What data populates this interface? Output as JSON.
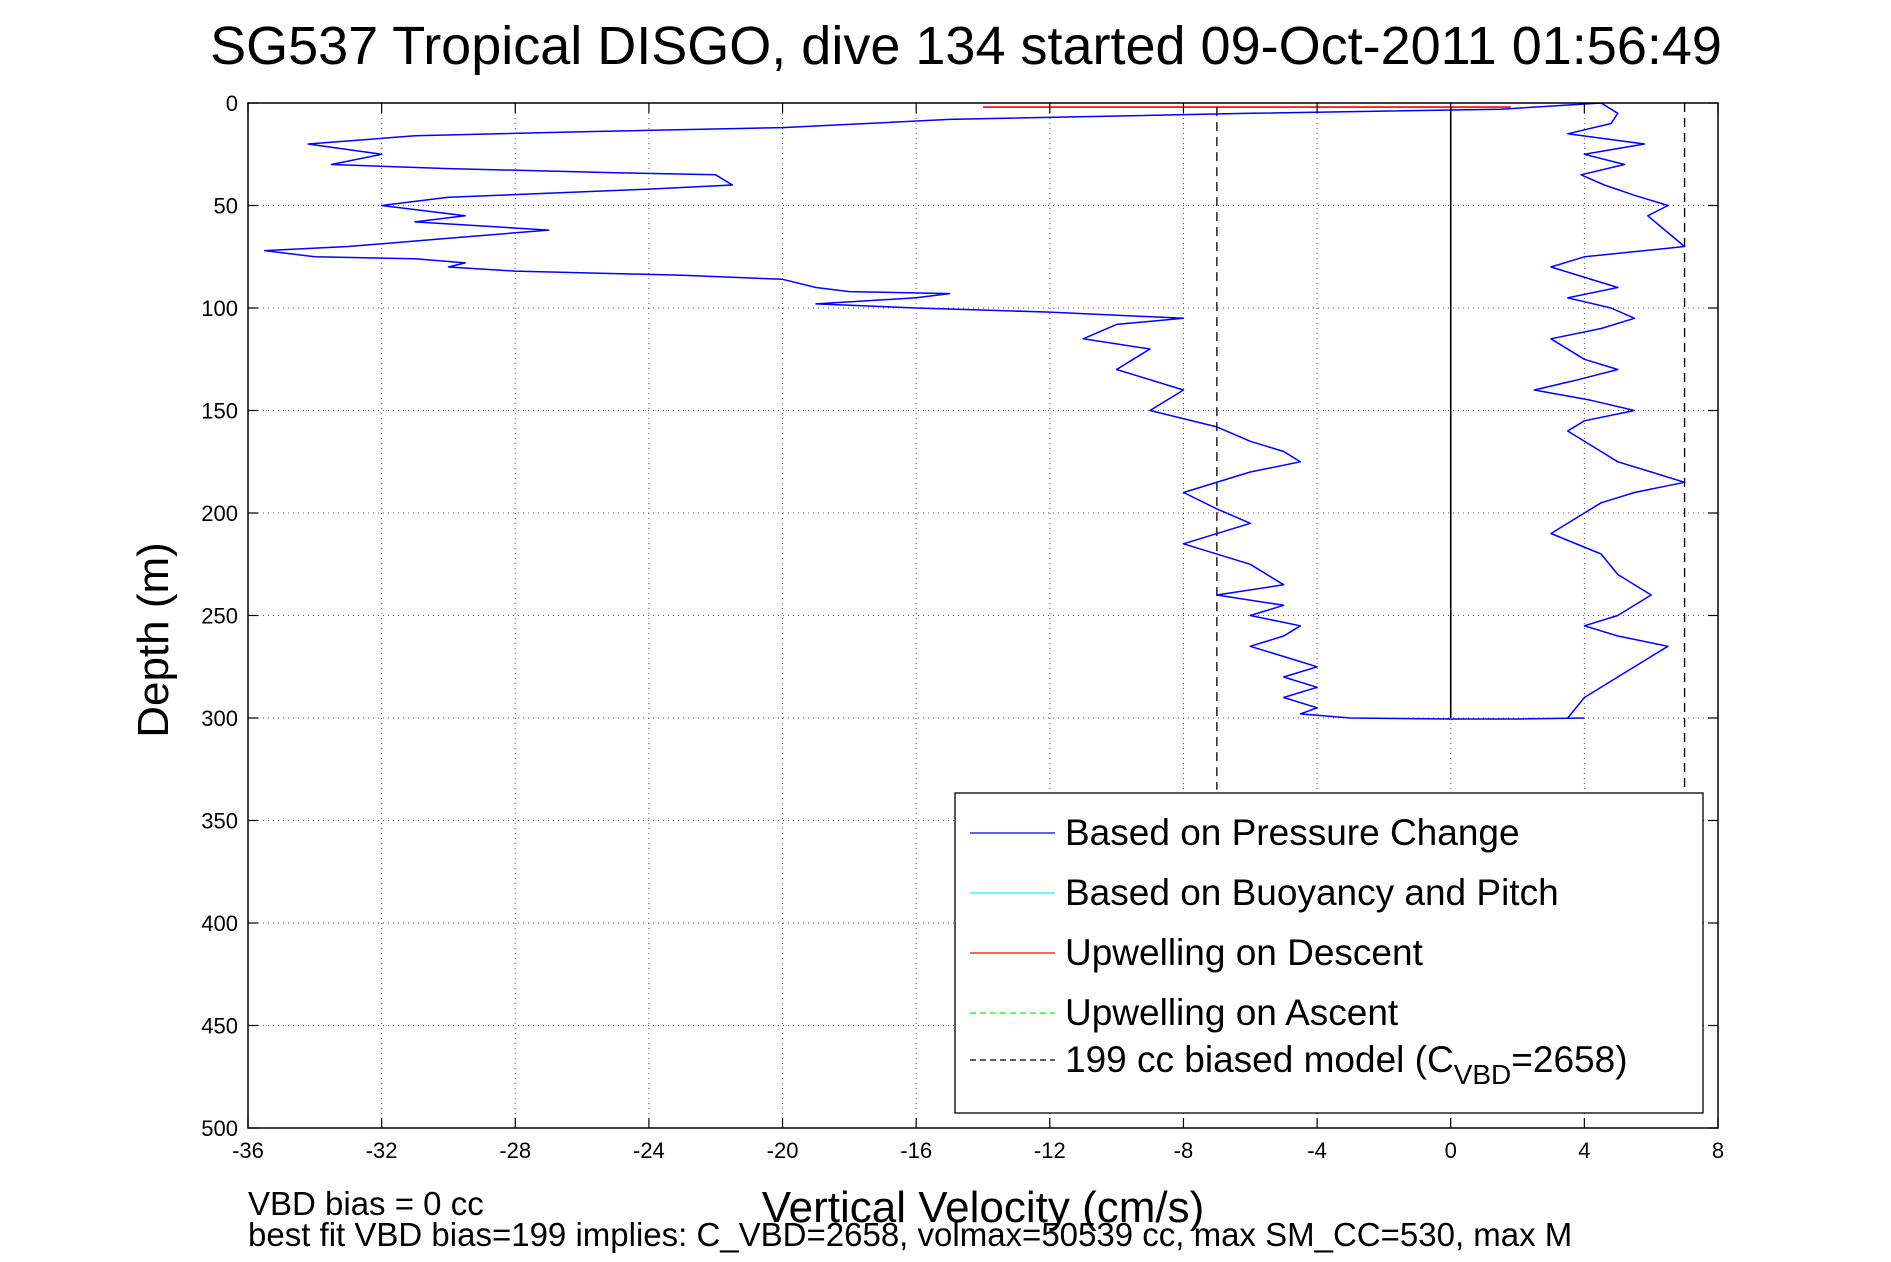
{
  "chart_data": {
    "type": "line",
    "title": "SG537 Tropical DISGO, dive 134 started 09-Oct-2011 01:56:49",
    "xlabel": "Vertical Velocity (cm/s)",
    "ylabel": "Depth (m)",
    "xlim": [
      -36,
      8
    ],
    "ylim": [
      0,
      500
    ],
    "y_reversed": true,
    "grid": true,
    "x_ticks": [
      -36,
      -32,
      -28,
      -24,
      -20,
      -16,
      -12,
      -8,
      -4,
      0,
      4,
      8
    ],
    "y_ticks": [
      0,
      50,
      100,
      150,
      200,
      250,
      300,
      350,
      400,
      450,
      500
    ],
    "legend_position": "bottom-right",
    "legend": [
      {
        "label": "Based on Pressure Change",
        "color": "#0000ff",
        "style": "solid"
      },
      {
        "label": "Based on Buoyancy and Pitch",
        "color": "#00ffff",
        "style": "solid"
      },
      {
        "label": "Upwelling on Descent",
        "color": "#ff0000",
        "style": "solid"
      },
      {
        "label": "Upwelling on Ascent",
        "color": "#00ff00",
        "style": "dashed"
      },
      {
        "label_pre": "199 cc biased model (C",
        "label_sub": "VBD",
        "label_post": "=2658)",
        "color": "#000000",
        "style": "dashed"
      }
    ],
    "series": [
      {
        "name": "Based on Pressure Change",
        "color": "#0000ff",
        "x": [
          4.5,
          1.5,
          -6,
          -15,
          -20,
          -26,
          -31,
          -34.2,
          -32,
          -33.5,
          -30,
          -25,
          -22,
          -21.5,
          -24,
          -30,
          -32,
          -29.5,
          -31,
          -27,
          -30,
          -33,
          -35.5,
          -34,
          -31,
          -29.5,
          -30,
          -28,
          -23,
          -20,
          -19,
          -18,
          -15,
          -16,
          -19,
          -16,
          -12,
          -8,
          -10,
          -11,
          -9,
          -10,
          -8,
          -9,
          -7,
          -6,
          -5,
          -4.5,
          -6,
          -8,
          -7,
          -6,
          -8,
          -6,
          -5,
          -7,
          -5,
          -6,
          -4.5,
          -5,
          -6,
          -5,
          -4,
          -5,
          -4,
          -5,
          -4,
          -4.5,
          -3,
          0,
          2,
          4
        ],
        "y": [
          0,
          3,
          5,
          8,
          12,
          14,
          16,
          20,
          25,
          30,
          32,
          34,
          35,
          40,
          42,
          46,
          50,
          55,
          58,
          62,
          66,
          70,
          72,
          75,
          76,
          78,
          80,
          82,
          84,
          86,
          90,
          92,
          93,
          95,
          98,
          100,
          102,
          105,
          108,
          115,
          120,
          130,
          140,
          150,
          158,
          165,
          170,
          175,
          180,
          190,
          198,
          205,
          215,
          225,
          235,
          240,
          245,
          250,
          255,
          260,
          265,
          270,
          275,
          280,
          285,
          290,
          295,
          298,
          300,
          300.5,
          300.5,
          300
        ]
      },
      {
        "name": "",
        "color": "#0000ff",
        "x": [
          4.5,
          5,
          4.8,
          3.5,
          5.8,
          4,
          5.2,
          3.9,
          4.6,
          5.5,
          6.5,
          5.9,
          7,
          4,
          3,
          5,
          3.5,
          4.8,
          5.5,
          4.5,
          3,
          4,
          5,
          3.8,
          2.5,
          4.2,
          5.5,
          4,
          3.5,
          4.5,
          5,
          6,
          7,
          5.5,
          4.5,
          4,
          3,
          4.5,
          5,
          6,
          5,
          4,
          5,
          6.5,
          6,
          5,
          4,
          3.5
        ],
        "y": [
          0,
          5,
          10,
          15,
          20,
          25,
          30,
          35,
          40,
          45,
          50,
          55,
          70,
          75,
          80,
          90,
          95,
          100,
          105,
          110,
          115,
          125,
          130,
          135,
          140,
          145,
          150,
          155,
          160,
          170,
          175,
          180,
          185,
          190,
          195,
          200,
          210,
          220,
          230,
          240,
          250,
          255,
          260,
          265,
          270,
          280,
          290,
          300
        ]
      }
    ],
    "reference_lines": [
      {
        "name": "Upwelling on Descent",
        "color": "#ff0000",
        "style": "solid",
        "x": [
          -14,
          1.8
        ],
        "y": [
          2,
          2
        ]
      },
      {
        "name": "199 cc biased model",
        "color": "#000000",
        "style": "dashed",
        "x": [
          -7,
          -7
        ],
        "y": [
          2,
          335
        ]
      },
      {
        "name": "199 cc biased model",
        "color": "#000000",
        "style": "dashed",
        "x": [
          7,
          7
        ],
        "y": [
          0,
          335
        ]
      },
      {
        "name": "zero",
        "color": "#000000",
        "style": "solid",
        "x": [
          0,
          0
        ],
        "y": [
          2,
          300
        ]
      }
    ]
  },
  "notes": {
    "line1": "VBD bias = 0 cc",
    "line2": "best fit VBD bias=199 implies: C_VBD=2658, volmax=50539 cc, max SM_CC=530, max M"
  }
}
